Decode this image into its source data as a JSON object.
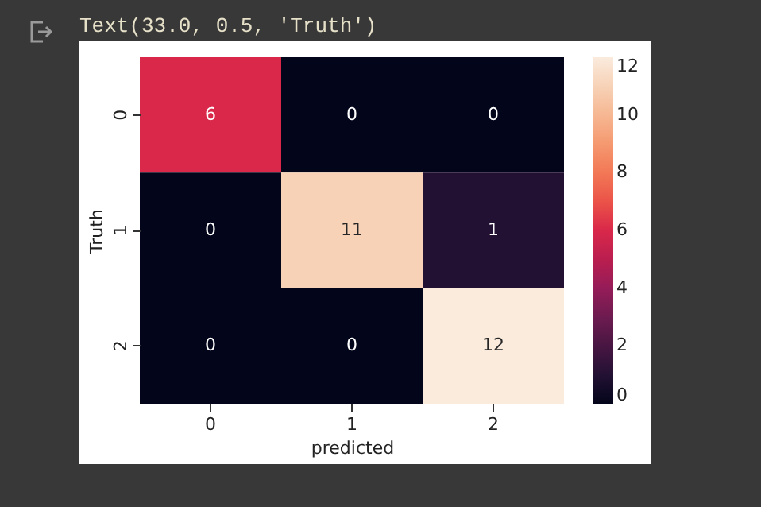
{
  "chart_data": {
    "type": "heatmap",
    "xlabel": "predicted",
    "ylabel": "Truth",
    "annotations": [
      "Text(33.0, 0.5, 'Truth')"
    ],
    "categories": [
      "0",
      "1",
      "2"
    ],
    "y_categories": [
      "0",
      "1",
      "2"
    ],
    "cells": [
      [
        6,
        0,
        0
      ],
      [
        0,
        11,
        1
      ],
      [
        0,
        0,
        12
      ]
    ],
    "data_labels": true,
    "clim": [
      0,
      12
    ],
    "cticks": [
      0,
      2,
      4,
      6,
      8,
      10,
      12
    ]
  }
}
